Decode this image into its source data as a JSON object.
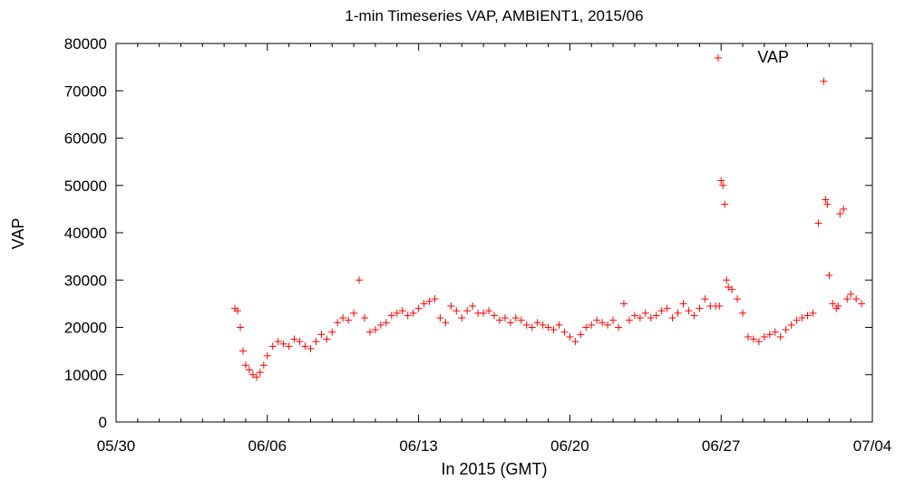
{
  "chart_data": {
    "type": "scatter",
    "title": "1-min Timeseries VAP, AMBIENT1, 2015/06",
    "xlabel": "In 2015 (GMT)",
    "ylabel": "VAP",
    "xlim": [
      "2015-05-30",
      "2015-07-04"
    ],
    "ylim": [
      0,
      80000
    ],
    "x_ticks": [
      "05/30",
      "06/06",
      "06/13",
      "06/20",
      "06/27",
      "07/04"
    ],
    "y_ticks": [
      0,
      10000,
      20000,
      30000,
      40000,
      50000,
      60000,
      70000,
      80000
    ],
    "grid": false,
    "legend_position": "top-right",
    "marker": "+",
    "series": [
      {
        "name": "VAP",
        "color": "#ff0000",
        "x": [
          "2015-06-04T12:00",
          "2015-06-04T15:00",
          "2015-06-04T18:00",
          "2015-06-04T21:00",
          "2015-06-05T00:00",
          "2015-06-05T04:00",
          "2015-06-05T08:00",
          "2015-06-05T12:00",
          "2015-06-05T16:00",
          "2015-06-05T20:00",
          "2015-06-06T00:00",
          "2015-06-06T06:00",
          "2015-06-06T12:00",
          "2015-06-06T18:00",
          "2015-06-07T00:00",
          "2015-06-07T06:00",
          "2015-06-07T12:00",
          "2015-06-07T18:00",
          "2015-06-08T00:00",
          "2015-06-08T06:00",
          "2015-06-08T12:00",
          "2015-06-08T18:00",
          "2015-06-09T00:00",
          "2015-06-09T06:00",
          "2015-06-09T12:00",
          "2015-06-09T18:00",
          "2015-06-10T00:00",
          "2015-06-10T06:00",
          "2015-06-10T12:00",
          "2015-06-10T18:00",
          "2015-06-11T00:00",
          "2015-06-11T06:00",
          "2015-06-11T12:00",
          "2015-06-11T18:00",
          "2015-06-12T00:00",
          "2015-06-12T06:00",
          "2015-06-12T12:00",
          "2015-06-12T18:00",
          "2015-06-13T00:00",
          "2015-06-13T06:00",
          "2015-06-13T12:00",
          "2015-06-13T18:00",
          "2015-06-14T00:00",
          "2015-06-14T06:00",
          "2015-06-14T12:00",
          "2015-06-14T18:00",
          "2015-06-15T00:00",
          "2015-06-15T06:00",
          "2015-06-15T12:00",
          "2015-06-15T18:00",
          "2015-06-16T00:00",
          "2015-06-16T06:00",
          "2015-06-16T12:00",
          "2015-06-16T18:00",
          "2015-06-17T00:00",
          "2015-06-17T06:00",
          "2015-06-17T12:00",
          "2015-06-17T18:00",
          "2015-06-18T00:00",
          "2015-06-18T06:00",
          "2015-06-18T12:00",
          "2015-06-18T18:00",
          "2015-06-19T00:00",
          "2015-06-19T06:00",
          "2015-06-19T12:00",
          "2015-06-19T18:00",
          "2015-06-20T00:00",
          "2015-06-20T06:00",
          "2015-06-20T12:00",
          "2015-06-20T18:00",
          "2015-06-21T00:00",
          "2015-06-21T06:00",
          "2015-06-21T12:00",
          "2015-06-21T18:00",
          "2015-06-22T00:00",
          "2015-06-22T06:00",
          "2015-06-22T12:00",
          "2015-06-22T18:00",
          "2015-06-23T00:00",
          "2015-06-23T06:00",
          "2015-06-23T12:00",
          "2015-06-23T18:00",
          "2015-06-24T00:00",
          "2015-06-24T06:00",
          "2015-06-24T12:00",
          "2015-06-24T18:00",
          "2015-06-25T00:00",
          "2015-06-25T06:00",
          "2015-06-25T12:00",
          "2015-06-25T18:00",
          "2015-06-26T00:00",
          "2015-06-26T06:00",
          "2015-06-26T12:00",
          "2015-06-26T18:00",
          "2015-06-26T22:00",
          "2015-06-27T00:00",
          "2015-06-27T02:00",
          "2015-06-27T04:00",
          "2015-06-27T06:00",
          "2015-06-27T08:00",
          "2015-06-27T12:00",
          "2015-06-27T18:00",
          "2015-06-28T00:00",
          "2015-06-28T06:00",
          "2015-06-28T12:00",
          "2015-06-28T18:00",
          "2015-06-29T00:00",
          "2015-06-29T06:00",
          "2015-06-29T12:00",
          "2015-06-29T18:00",
          "2015-06-30T00:00",
          "2015-06-30T06:00",
          "2015-06-30T12:00",
          "2015-06-30T18:00",
          "2015-07-01T00:00",
          "2015-07-01T06:00",
          "2015-07-01T12:00",
          "2015-07-01T18:00",
          "2015-07-01T20:00",
          "2015-07-01T22:00",
          "2015-07-02T00:00",
          "2015-07-02T04:00",
          "2015-07-02T08:00",
          "2015-07-02T10:00",
          "2015-07-02T12:00",
          "2015-07-02T16:00",
          "2015-07-02T20:00",
          "2015-07-03T00:00",
          "2015-07-03T06:00",
          "2015-07-03T12:00"
        ],
        "y": [
          24000,
          23500,
          20000,
          15000,
          12000,
          11000,
          10000,
          9500,
          10500,
          12000,
          14000,
          16000,
          17000,
          16500,
          16000,
          17500,
          17000,
          16000,
          15500,
          17000,
          18500,
          17500,
          19000,
          21000,
          22000,
          21500,
          23000,
          30000,
          22000,
          19000,
          19500,
          20500,
          21000,
          22500,
          23000,
          23500,
          22500,
          23000,
          24000,
          25000,
          25500,
          26000,
          22000,
          21000,
          24500,
          23500,
          22000,
          23500,
          24500,
          23000,
          23000,
          23500,
          22500,
          21500,
          22000,
          21000,
          22000,
          21500,
          20500,
          20000,
          21000,
          20500,
          20000,
          19500,
          20500,
          19000,
          18000,
          17000,
          18500,
          20000,
          20500,
          21500,
          21000,
          20500,
          21500,
          20000,
          25000,
          21500,
          22500,
          22000,
          23000,
          22000,
          22500,
          23500,
          24000,
          22000,
          23000,
          25000,
          23500,
          22500,
          24000,
          26000,
          24500,
          24500,
          24500,
          51000,
          50000,
          46000,
          30000,
          28500,
          28000,
          26000,
          23000,
          18000,
          17500,
          17000,
          18000,
          18500,
          19000,
          18000,
          19500,
          20500,
          21500,
          22000,
          22500,
          23000,
          42000,
          72000,
          47000,
          46000,
          31000,
          25000,
          24000,
          24500,
          44000,
          45000,
          26000,
          27000,
          26000,
          25000
        ]
      }
    ]
  }
}
